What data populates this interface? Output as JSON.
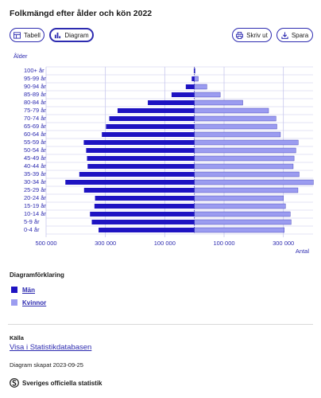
{
  "title": "Folkmängd efter ålder och kön 2022",
  "toolbar": {
    "table_label": "Tabell",
    "diagram_label": "Diagram",
    "print_label": "Skriv ut",
    "save_label": "Spara"
  },
  "chart_data": {
    "type": "bar",
    "orientation": "horizontal",
    "layout": "population-pyramid",
    "ylabel": "Ålder",
    "xlabel": "Antal",
    "categories": [
      "100+ år",
      "95-99 år",
      "90-94 år",
      "85-89 år",
      "80-84 år",
      "75-79 år",
      "70-74 år",
      "65-69 år",
      "60-64 år",
      "55-59 år",
      "50-54 år",
      "45-49 år",
      "40-44 år",
      "35-39 år",
      "30-34 år",
      "25-29 år",
      "20-24 år",
      "15-19 år",
      "10-14 år",
      "5-9 år",
      "0-4 år"
    ],
    "series": [
      {
        "name": "Män",
        "color": "#1e13c2",
        "values": [
          2000,
          9000,
          29000,
          77000,
          157000,
          259000,
          287000,
          298000,
          312000,
          373000,
          365000,
          362000,
          360000,
          388000,
          435000,
          372000,
          335000,
          337000,
          352000,
          346000,
          323000
        ]
      },
      {
        "name": "Kvinnor",
        "color": "#9b9cf0",
        "values": [
          3000,
          13000,
          42000,
          87000,
          163000,
          250000,
          275000,
          278000,
          290000,
          350000,
          342000,
          336000,
          333000,
          353000,
          401000,
          349000,
          300000,
          307000,
          323000,
          326000,
          303000
        ]
      }
    ],
    "xticks": [
      "500 000",
      "300 000",
      "100 000",
      "100 000",
      "300 000"
    ],
    "xlim": [
      -500000,
      400000
    ],
    "grid": true
  },
  "legend": {
    "title": "Diagramförklaring",
    "men": "Män",
    "women": "Kvinnor"
  },
  "footer": {
    "source_label": "Källa",
    "source_link": "Visa i Statistikdatabasen",
    "created": "Diagram skapat 2023-09-25",
    "logo_text": "Sveriges officiella statistik"
  }
}
